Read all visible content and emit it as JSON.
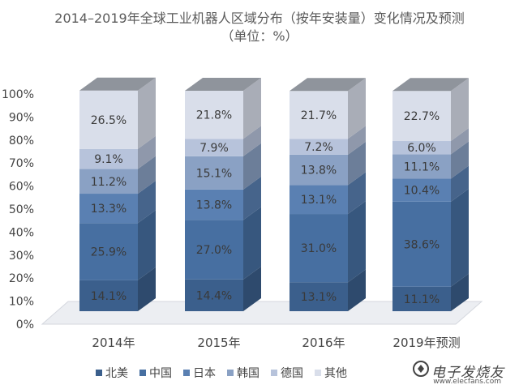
{
  "title": {
    "line1": "2014–2019年全球工业机器人区域分布（按年安装量）变化情况及预测",
    "line2": "（单位：%）"
  },
  "chart_data": {
    "type": "bar",
    "stacked": true,
    "style": "3d-column",
    "categories": [
      "2014年",
      "2015年",
      "2016年",
      "2019年预测"
    ],
    "series": [
      {
        "name": "北美",
        "values": [
          14.1,
          14.4,
          13.1,
          11.1
        ],
        "labels": [
          "14.1%",
          "14.4%",
          "13.1%",
          "11.1%"
        ],
        "color": "#3b5f8c"
      },
      {
        "name": "中国",
        "values": [
          25.9,
          27.0,
          31.0,
          38.6
        ],
        "labels": [
          "25.9%",
          "27.0%",
          "31.0%",
          "38.6%"
        ],
        "color": "#476fa1"
      },
      {
        "name": "日本",
        "values": [
          13.3,
          13.8,
          13.1,
          10.4
        ],
        "labels": [
          "13.3%",
          "13.8%",
          "13.1%",
          "10.4%"
        ],
        "color": "#5a80b2"
      },
      {
        "name": "韩国",
        "values": [
          11.2,
          15.1,
          13.8,
          11.1
        ],
        "labels": [
          "11.2%",
          "15.1%",
          "13.8%",
          "11.1%"
        ],
        "color": "#8aa1c4"
      },
      {
        "name": "德国",
        "values": [
          9.1,
          7.9,
          7.2,
          6.0
        ],
        "labels": [
          "9.1%",
          "7.9%",
          "7.2%",
          "6.0%"
        ],
        "color": "#b7c3db"
      },
      {
        "name": "其他",
        "values": [
          26.5,
          21.8,
          21.7,
          22.7
        ],
        "labels": [
          "26.5%",
          "21.8%",
          "21.7%",
          "22.7%"
        ],
        "color": "#d9deea"
      }
    ],
    "y_ticks": [
      "0%",
      "10%",
      "20%",
      "30%",
      "40%",
      "50%",
      "60%",
      "70%",
      "80%",
      "90%",
      "100%"
    ],
    "ylim": [
      0,
      100
    ],
    "grid": false,
    "legend_position": "bottom"
  },
  "watermark": {
    "text": "电子发烧友",
    "domain": "www.elecfans.com"
  }
}
